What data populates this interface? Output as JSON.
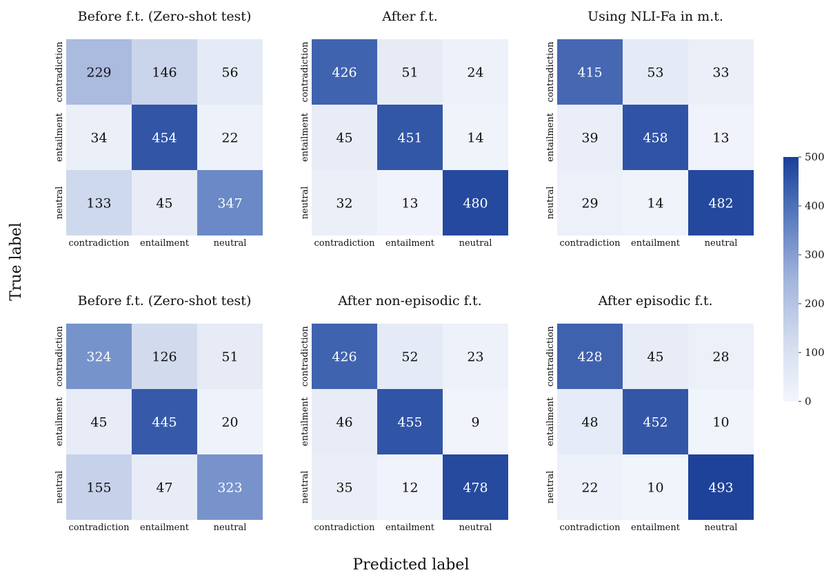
{
  "xlabel": "Predicted label",
  "ylabel": "True label",
  "colorbar": {
    "vmin": 0,
    "vmax": 500,
    "ticks": [
      "0",
      "100",
      "200",
      "300",
      "400",
      "500"
    ],
    "color_low": "#f3f6fc",
    "color_high": "#1a3f97"
  },
  "chart_data": [
    {
      "type": "heatmap",
      "title": "Before f.t. (Zero-shot test)",
      "x_categories": [
        "contradiction",
        "entailment",
        "neutral"
      ],
      "y_categories": [
        "contradiction",
        "entailment",
        "neutral"
      ],
      "values": [
        [
          229,
          146,
          56
        ],
        [
          34,
          454,
          22
        ],
        [
          133,
          45,
          347
        ]
      ]
    },
    {
      "type": "heatmap",
      "title": "After f.t.",
      "x_categories": [
        "contradiction",
        "entailment",
        "neutral"
      ],
      "y_categories": [
        "contradiction",
        "entailment",
        "neutral"
      ],
      "values": [
        [
          426,
          51,
          24
        ],
        [
          45,
          451,
          14
        ],
        [
          32,
          13,
          480
        ]
      ]
    },
    {
      "type": "heatmap",
      "title": "Using NLI-Fa in m.t.",
      "x_categories": [
        "contradiction",
        "entailment",
        "neutral"
      ],
      "y_categories": [
        "contradiction",
        "entailment",
        "neutral"
      ],
      "values": [
        [
          415,
          53,
          33
        ],
        [
          39,
          458,
          13
        ],
        [
          29,
          14,
          482
        ]
      ]
    },
    {
      "type": "heatmap",
      "title": "Before f.t. (Zero-shot test)",
      "x_categories": [
        "contradiction",
        "entailment",
        "neutral"
      ],
      "y_categories": [
        "contradiction",
        "entailment",
        "neutral"
      ],
      "values": [
        [
          324,
          126,
          51
        ],
        [
          45,
          445,
          20
        ],
        [
          155,
          47,
          323
        ]
      ]
    },
    {
      "type": "heatmap",
      "title": "After non-episodic f.t.",
      "x_categories": [
        "contradiction",
        "entailment",
        "neutral"
      ],
      "y_categories": [
        "contradiction",
        "entailment",
        "neutral"
      ],
      "values": [
        [
          426,
          52,
          23
        ],
        [
          46,
          455,
          9
        ],
        [
          35,
          12,
          478
        ]
      ]
    },
    {
      "type": "heatmap",
      "title": "After episodic f.t.",
      "x_categories": [
        "contradiction",
        "entailment",
        "neutral"
      ],
      "y_categories": [
        "contradiction",
        "entailment",
        "neutral"
      ],
      "values": [
        [
          428,
          45,
          28
        ],
        [
          48,
          452,
          10
        ],
        [
          22,
          10,
          493
        ]
      ]
    }
  ]
}
